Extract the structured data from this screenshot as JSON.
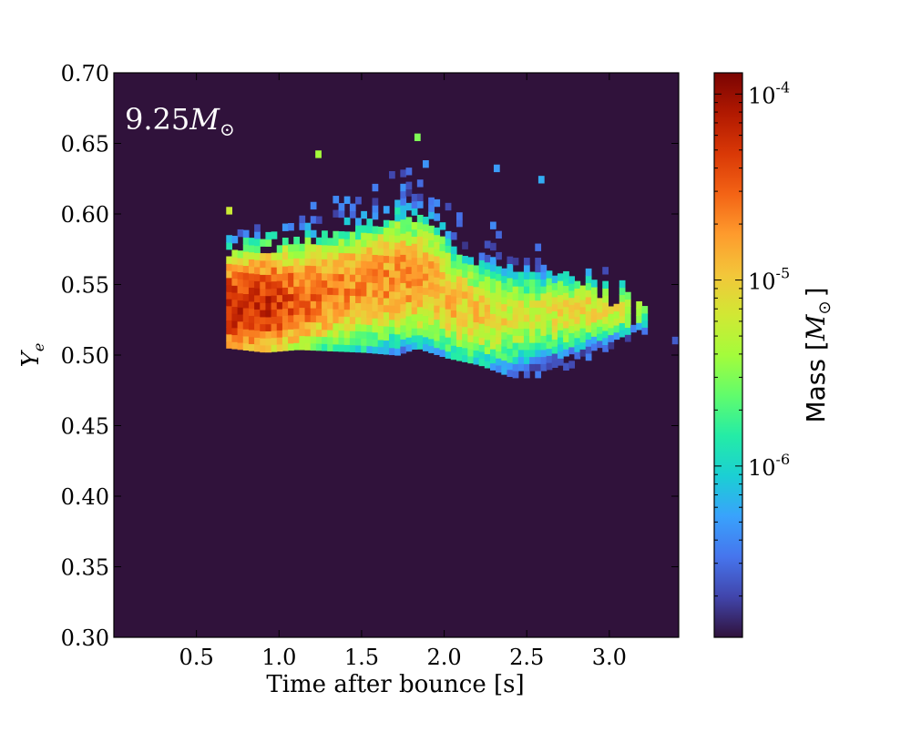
{
  "chart_data": {
    "type": "heatmap",
    "annotation": {
      "base": "9.25",
      "symbol": "M",
      "subscript": "⊙"
    },
    "xlabel": "Time after bounce [s]",
    "ylabel": {
      "base": "Y",
      "subscript": "e"
    },
    "xlim": [
      0.0,
      3.42
    ],
    "ylim": [
      0.3,
      0.7
    ],
    "x_ticks": [
      0.5,
      1.0,
      1.5,
      2.0,
      2.5,
      3.0
    ],
    "x_tick_labels": [
      "0.5",
      "1.0",
      "1.5",
      "2.0",
      "2.5",
      "3.0"
    ],
    "y_ticks": [
      0.3,
      0.35,
      0.4,
      0.45,
      0.5,
      0.55,
      0.6,
      0.65,
      0.7
    ],
    "y_tick_labels": [
      "0.30",
      "0.35",
      "0.40",
      "0.45",
      "0.50",
      "0.55",
      "0.60",
      "0.65",
      "0.70"
    ],
    "bin_width_x": 0.034,
    "bin_width_y": 0.005,
    "grid": false,
    "background_color": "#30123b",
    "colorbar": {
      "scale": "log",
      "range": [
        1.2e-07,
        0.00013
      ],
      "ticks": [
        1e-06,
        1e-05,
        0.0001
      ],
      "tick_labels": [
        {
          "base": "10",
          "exp": "-6"
        },
        {
          "base": "10",
          "exp": "-5"
        },
        {
          "base": "10",
          "exp": "-4"
        }
      ],
      "label": {
        "prefix": "Mass [",
        "symbol": "M",
        "subscript": "⊙",
        "suffix": "]"
      },
      "colormap": [
        "#30123b",
        "#4145ab",
        "#4675ed",
        "#39a2fc",
        "#1bcfd4",
        "#24eca6",
        "#61fc6c",
        "#a4fc3b",
        "#d1e834",
        "#f3c63a",
        "#fe9b2d",
        "#f36315",
        "#d93806",
        "#b11901",
        "#7a0402"
      ]
    },
    "ridge": [
      {
        "x": 0.7,
        "y": 0.532,
        "peak": -4.2,
        "spread": 0.025
      },
      {
        "x": 0.9,
        "y": 0.533,
        "peak": -4.25,
        "spread": 0.027
      },
      {
        "x": 1.1,
        "y": 0.537,
        "peak": -4.5,
        "spread": 0.028
      },
      {
        "x": 1.3,
        "y": 0.542,
        "peak": -4.65,
        "spread": 0.028
      },
      {
        "x": 1.5,
        "y": 0.546,
        "peak": -4.7,
        "spread": 0.029
      },
      {
        "x": 1.7,
        "y": 0.553,
        "peak": -4.7,
        "spread": 0.03
      },
      {
        "x": 1.9,
        "y": 0.55,
        "peak": -4.8,
        "spread": 0.03
      },
      {
        "x": 2.1,
        "y": 0.53,
        "peak": -4.95,
        "spread": 0.026
      },
      {
        "x": 2.3,
        "y": 0.524,
        "peak": -5.1,
        "spread": 0.025
      },
      {
        "x": 2.5,
        "y": 0.525,
        "peak": -5.25,
        "spread": 0.023
      },
      {
        "x": 2.7,
        "y": 0.528,
        "peak": -5.15,
        "spread": 0.02
      },
      {
        "x": 2.9,
        "y": 0.53,
        "peak": -5.05,
        "spread": 0.016
      },
      {
        "x": 3.1,
        "y": 0.531,
        "peak": -5.2,
        "spread": 0.012
      },
      {
        "x": 3.22,
        "y": 0.53,
        "peak": -5.7,
        "spread": 0.01
      }
    ],
    "envelope": [
      {
        "x": 0.68,
        "y_min": 0.505,
        "y_max": 0.605
      },
      {
        "x": 0.9,
        "y_min": 0.502,
        "y_max": 0.6
      },
      {
        "x": 1.1,
        "y_min": 0.504,
        "y_max": 0.618
      },
      {
        "x": 1.3,
        "y_min": 0.503,
        "y_max": 0.63
      },
      {
        "x": 1.5,
        "y_min": 0.502,
        "y_max": 0.635
      },
      {
        "x": 1.7,
        "y_min": 0.5,
        "y_max": 0.64
      },
      {
        "x": 1.82,
        "y_min": 0.505,
        "y_max": 0.655
      },
      {
        "x": 2.0,
        "y_min": 0.498,
        "y_max": 0.625
      },
      {
        "x": 2.2,
        "y_min": 0.493,
        "y_max": 0.6
      },
      {
        "x": 2.4,
        "y_min": 0.484,
        "y_max": 0.592
      },
      {
        "x": 2.6,
        "y_min": 0.484,
        "y_max": 0.59
      },
      {
        "x": 2.8,
        "y_min": 0.493,
        "y_max": 0.575
      },
      {
        "x": 3.0,
        "y_min": 0.505,
        "y_max": 0.555
      },
      {
        "x": 3.2,
        "y_min": 0.515,
        "y_max": 0.545
      }
    ],
    "isolated_cells": [
      {
        "x": 3.38,
        "y": 0.508,
        "mass": 2.5e-07
      },
      {
        "x": 2.57,
        "y": 0.622,
        "mass": 6e-07
      },
      {
        "x": 2.3,
        "y": 0.63,
        "mass": 5e-07
      },
      {
        "x": 1.82,
        "y": 0.652,
        "mass": 3e-06
      },
      {
        "x": 1.22,
        "y": 0.64,
        "mass": 4e-06
      },
      {
        "x": 0.68,
        "y": 0.6,
        "mass": 6e-06
      }
    ]
  }
}
